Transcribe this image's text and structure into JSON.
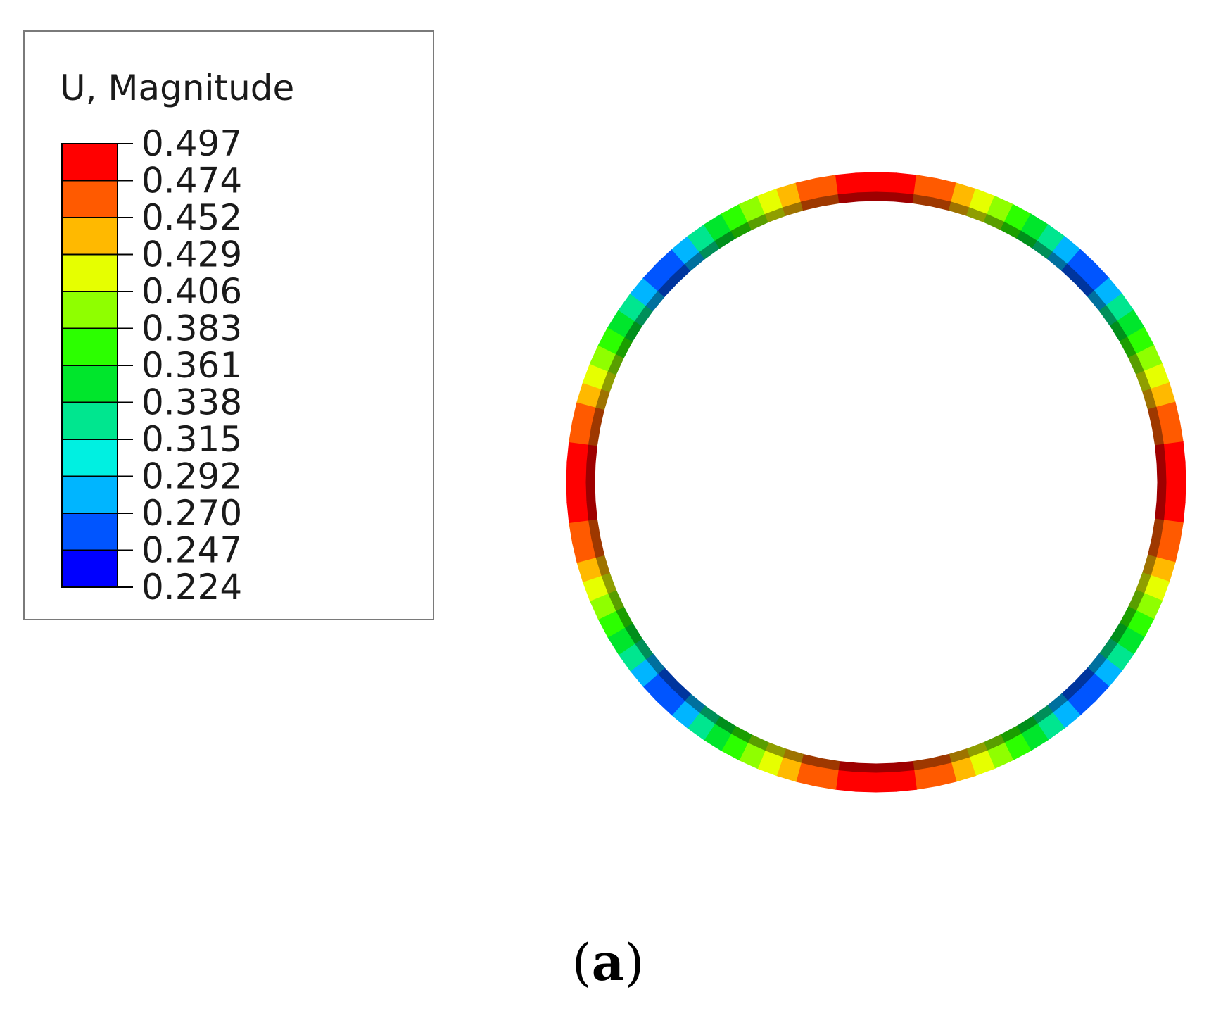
{
  "legend": {
    "title": "U, Magnitude",
    "tick_labels": [
      "0.497",
      "0.474",
      "0.452",
      "0.429",
      "0.406",
      "0.383",
      "0.361",
      "0.338",
      "0.315",
      "0.292",
      "0.270",
      "0.247",
      "0.224"
    ],
    "band_colors": [
      "#ff0000",
      "#ff5a00",
      "#ffb900",
      "#e6ff00",
      "#8fff00",
      "#2cff00",
      "#00e62c",
      "#00e68f",
      "#00f0e1",
      "#00b5ff",
      "#0055ff",
      "#0000ff"
    ]
  },
  "ring": {
    "max_color_at": "top-bottom",
    "min_color_at": "diagonals"
  },
  "caption": {
    "open": "(",
    "letter": "a",
    "close": ")"
  }
}
